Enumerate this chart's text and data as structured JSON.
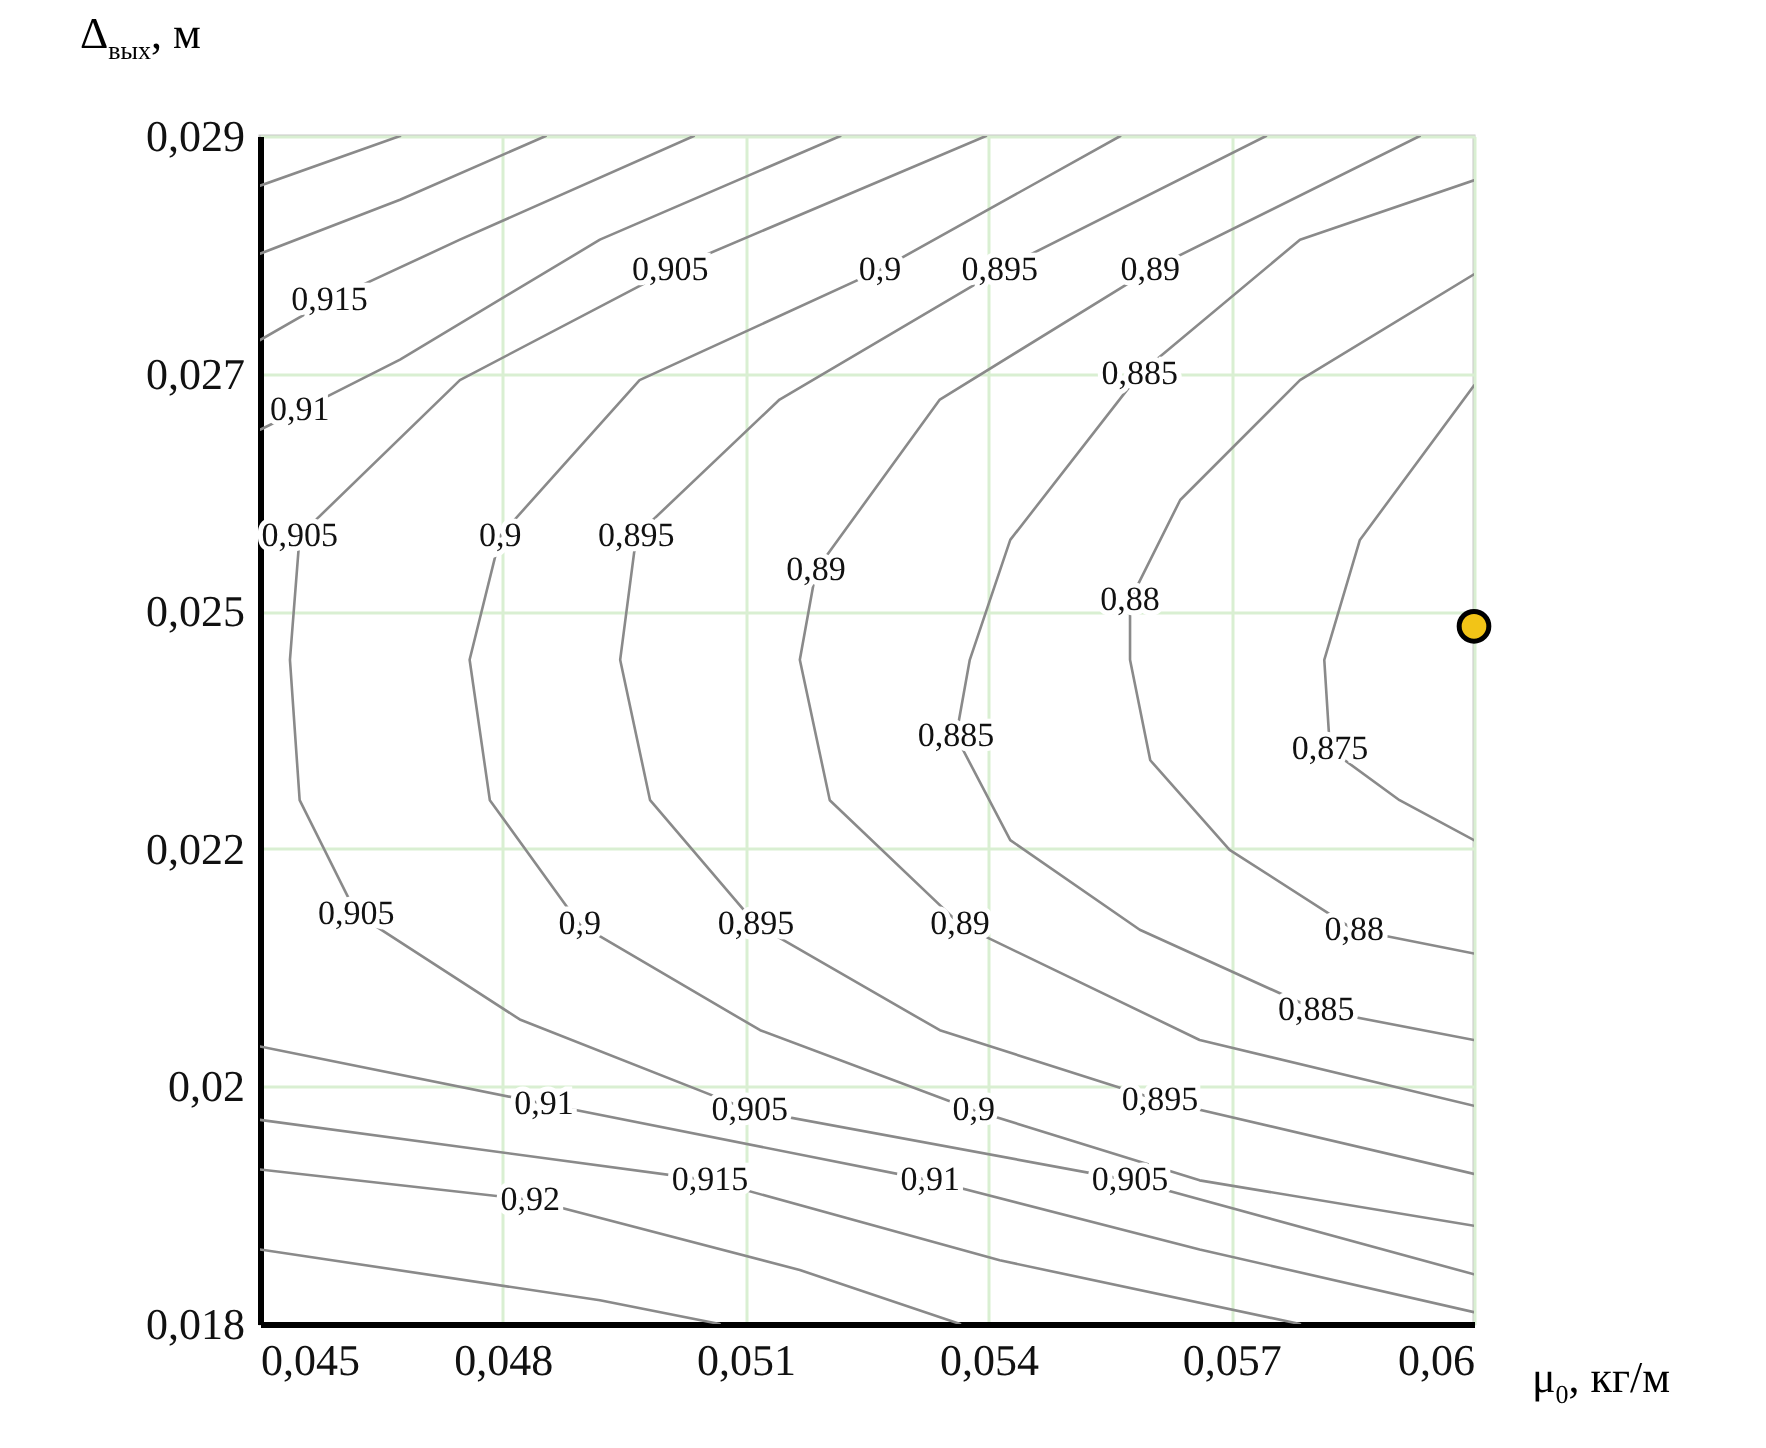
{
  "chart_data": {
    "type": "line",
    "xlabel": "μ$_{0}$, кг/м",
    "ylabel": "Δ$_{вых}$, м",
    "xlim": [
      0.045,
      0.06
    ],
    "ylim": [
      0.018,
      0.029
    ],
    "xticks": [
      {
        "value": 0.045,
        "label": "0,045"
      },
      {
        "value": 0.048,
        "label": "0,048"
      },
      {
        "value": 0.051,
        "label": "0,051"
      },
      {
        "value": 0.054,
        "label": "0,054"
      },
      {
        "value": 0.057,
        "label": "0,057"
      },
      {
        "value": 0.06,
        "label": "0,06"
      }
    ],
    "yticks": [
      {
        "value": 0.018,
        "label": "0,018"
      },
      {
        "value": 0.0202,
        "label": "0,02"
      },
      {
        "value": 0.0224,
        "label": "0,022"
      },
      {
        "value": 0.0246,
        "label": "0,025"
      },
      {
        "value": 0.0268,
        "label": "0,027"
      },
      {
        "value": 0.029,
        "label": "0,029"
      }
    ],
    "grid": true,
    "series": [
      {
        "color": "#8a8a8a",
        "x": [
          0.045,
          0.04673
        ],
        "values": [
          0.02854,
          0.029
        ]
      },
      {
        "color": "#8a8a8a",
        "x": [
          0.045,
          0.04673,
          0.04853
        ],
        "values": [
          0.02791,
          0.02841,
          0.029
        ]
      },
      {
        "color": "#8a8a8a",
        "x": [
          0.045,
          0.04586,
          0.04747,
          0.05036
        ],
        "values": [
          0.02711,
          0.02748,
          0.02804,
          0.029
        ]
      },
      {
        "color": "#8a8a8a",
        "x": [
          0.045,
          0.04549,
          0.04673,
          0.0492,
          0.05217
        ],
        "values": [
          0.02628,
          0.02646,
          0.02693,
          0.02804,
          0.029
        ]
      },
      {
        "color": "#8a8a8a",
        "x": [
          0.05397,
          0.05007,
          0.04747,
          0.04549,
          0.04537,
          0.04549,
          0.04619,
          0.04821,
          0.05105,
          0.05575,
          0.06
        ],
        "values": [
          0.029,
          0.02776,
          0.02674,
          0.0253,
          0.02415,
          0.02285,
          0.0218,
          0.02082,
          0.01998,
          0.01933,
          0.01846
        ]
      },
      {
        "color": "#8a8a8a",
        "x": [
          0.05563,
          0.05266,
          0.04969,
          0.04797,
          0.04759,
          0.04784,
          0.04895,
          0.05118,
          0.05382,
          0.05661,
          0.06
        ],
        "values": [
          0.029,
          0.02776,
          0.02674,
          0.0253,
          0.02415,
          0.02285,
          0.0217,
          0.02072,
          0.01998,
          0.01933,
          0.01891
        ]
      },
      {
        "color": "#8a8a8a",
        "x": [
          0.05743,
          0.05414,
          0.05142,
          0.04965,
          0.04945,
          0.04982,
          0.05113,
          0.0534,
          0.05612,
          0.06
        ],
        "values": [
          0.029,
          0.02776,
          0.02656,
          0.0253,
          0.02415,
          0.02285,
          0.0217,
          0.02072,
          0.02007,
          0.01939
        ]
      },
      {
        "color": "#8a8a8a",
        "x": [
          0.05933,
          0.056,
          0.0534,
          0.05187,
          0.05167,
          0.05204,
          0.05365,
          0.05661,
          0.06
        ],
        "values": [
          0.029,
          0.02776,
          0.02656,
          0.02498,
          0.02415,
          0.02285,
          0.0217,
          0.02063,
          0.02002
        ]
      },
      {
        "color": "#8a8a8a",
        "x": [
          0.06,
          0.05785,
          0.05587,
          0.05427,
          0.05377,
          0.0536,
          0.05427,
          0.05587,
          0.05805,
          0.06
        ],
        "values": [
          0.02859,
          0.02804,
          0.0268,
          0.02526,
          0.02415,
          0.02344,
          0.02248,
          0.02165,
          0.02091,
          0.02063
        ]
      },
      {
        "color": "#8a8a8a",
        "x": [
          0.06,
          0.05785,
          0.05637,
          0.05575,
          0.05575,
          0.056,
          0.05698,
          0.05852,
          0.06
        ],
        "values": [
          0.02772,
          0.02674,
          0.02563,
          0.0247,
          0.02415,
          0.02322,
          0.02239,
          0.02165,
          0.02143
        ]
      },
      {
        "color": "#8a8a8a",
        "x": [
          0.06,
          0.05859,
          0.05815,
          0.05822,
          0.05908,
          0.06
        ],
        "values": [
          0.02669,
          0.02526,
          0.02415,
          0.02332,
          0.02285,
          0.02248
        ]
      },
      {
        "color": "#8a8a8a",
        "x": [
          0.045,
          0.04851,
          0.05328,
          0.05661,
          0.06
        ],
        "values": [
          0.02057,
          0.02004,
          0.01933,
          0.01869,
          0.01811
        ]
      },
      {
        "color": "#8a8a8a",
        "x": [
          0.045,
          0.05056,
          0.05414,
          0.05785
        ],
        "values": [
          0.01989,
          0.01933,
          0.01859,
          0.018
        ]
      },
      {
        "color": "#8a8a8a",
        "x": [
          0.045,
          0.04834,
          0.05167,
          0.05365
        ],
        "values": [
          0.01943,
          0.01915,
          0.0185,
          0.018
        ]
      },
      {
        "color": "#8a8a8a",
        "x": [
          0.045,
          0.0492,
          0.05068
        ],
        "values": [
          0.01869,
          0.01822,
          0.018
        ]
      },
      {
        "type": "scatter",
        "marker": "circle",
        "color": "#f2c417",
        "x": [
          0.06
        ],
        "values": [
          0.02446
        ]
      }
    ],
    "annotations": [
      {
        "text": "0,915",
        "x": 0.04586,
        "y": 0.02748
      },
      {
        "text": "0,91",
        "x": 0.04549,
        "y": 0.02646
      },
      {
        "text": "0,905",
        "x": 0.04549,
        "y": 0.0253
      },
      {
        "text": "0,905",
        "x": 0.05007,
        "y": 0.02776
      },
      {
        "text": "0,9",
        "x": 0.05266,
        "y": 0.02776
      },
      {
        "text": "0,895",
        "x": 0.05414,
        "y": 0.02776
      },
      {
        "text": "0,89",
        "x": 0.056,
        "y": 0.02776
      },
      {
        "text": "0,885",
        "x": 0.05587,
        "y": 0.0268
      },
      {
        "text": "0,9",
        "x": 0.04797,
        "y": 0.0253
      },
      {
        "text": "0,895",
        "x": 0.04965,
        "y": 0.0253
      },
      {
        "text": "0,89",
        "x": 0.05187,
        "y": 0.02498
      },
      {
        "text": "0,88",
        "x": 0.05575,
        "y": 0.0247
      },
      {
        "text": "0,885",
        "x": 0.0536,
        "y": 0.02344
      },
      {
        "text": "0,875",
        "x": 0.05822,
        "y": 0.02332
      },
      {
        "text": "0,905",
        "x": 0.04619,
        "y": 0.0218
      },
      {
        "text": "0,9",
        "x": 0.04895,
        "y": 0.0217
      },
      {
        "text": "0,895",
        "x": 0.05113,
        "y": 0.0217
      },
      {
        "text": "0,89",
        "x": 0.05365,
        "y": 0.0217
      },
      {
        "text": "0,88",
        "x": 0.05852,
        "y": 0.02165
      },
      {
        "text": "0,885",
        "x": 0.05805,
        "y": 0.02091
      },
      {
        "text": "0,91",
        "x": 0.04851,
        "y": 0.02004
      },
      {
        "text": "0,905",
        "x": 0.05105,
        "y": 0.01998
      },
      {
        "text": "0,9",
        "x": 0.05382,
        "y": 0.01998
      },
      {
        "text": "0,895",
        "x": 0.05612,
        "y": 0.02007
      },
      {
        "text": "0,92",
        "x": 0.04834,
        "y": 0.01915
      },
      {
        "text": "0,915",
        "x": 0.05056,
        "y": 0.01933
      },
      {
        "text": "0,91",
        "x": 0.05328,
        "y": 0.01933
      },
      {
        "text": "0,905",
        "x": 0.05575,
        "y": 0.01933
      }
    ]
  }
}
